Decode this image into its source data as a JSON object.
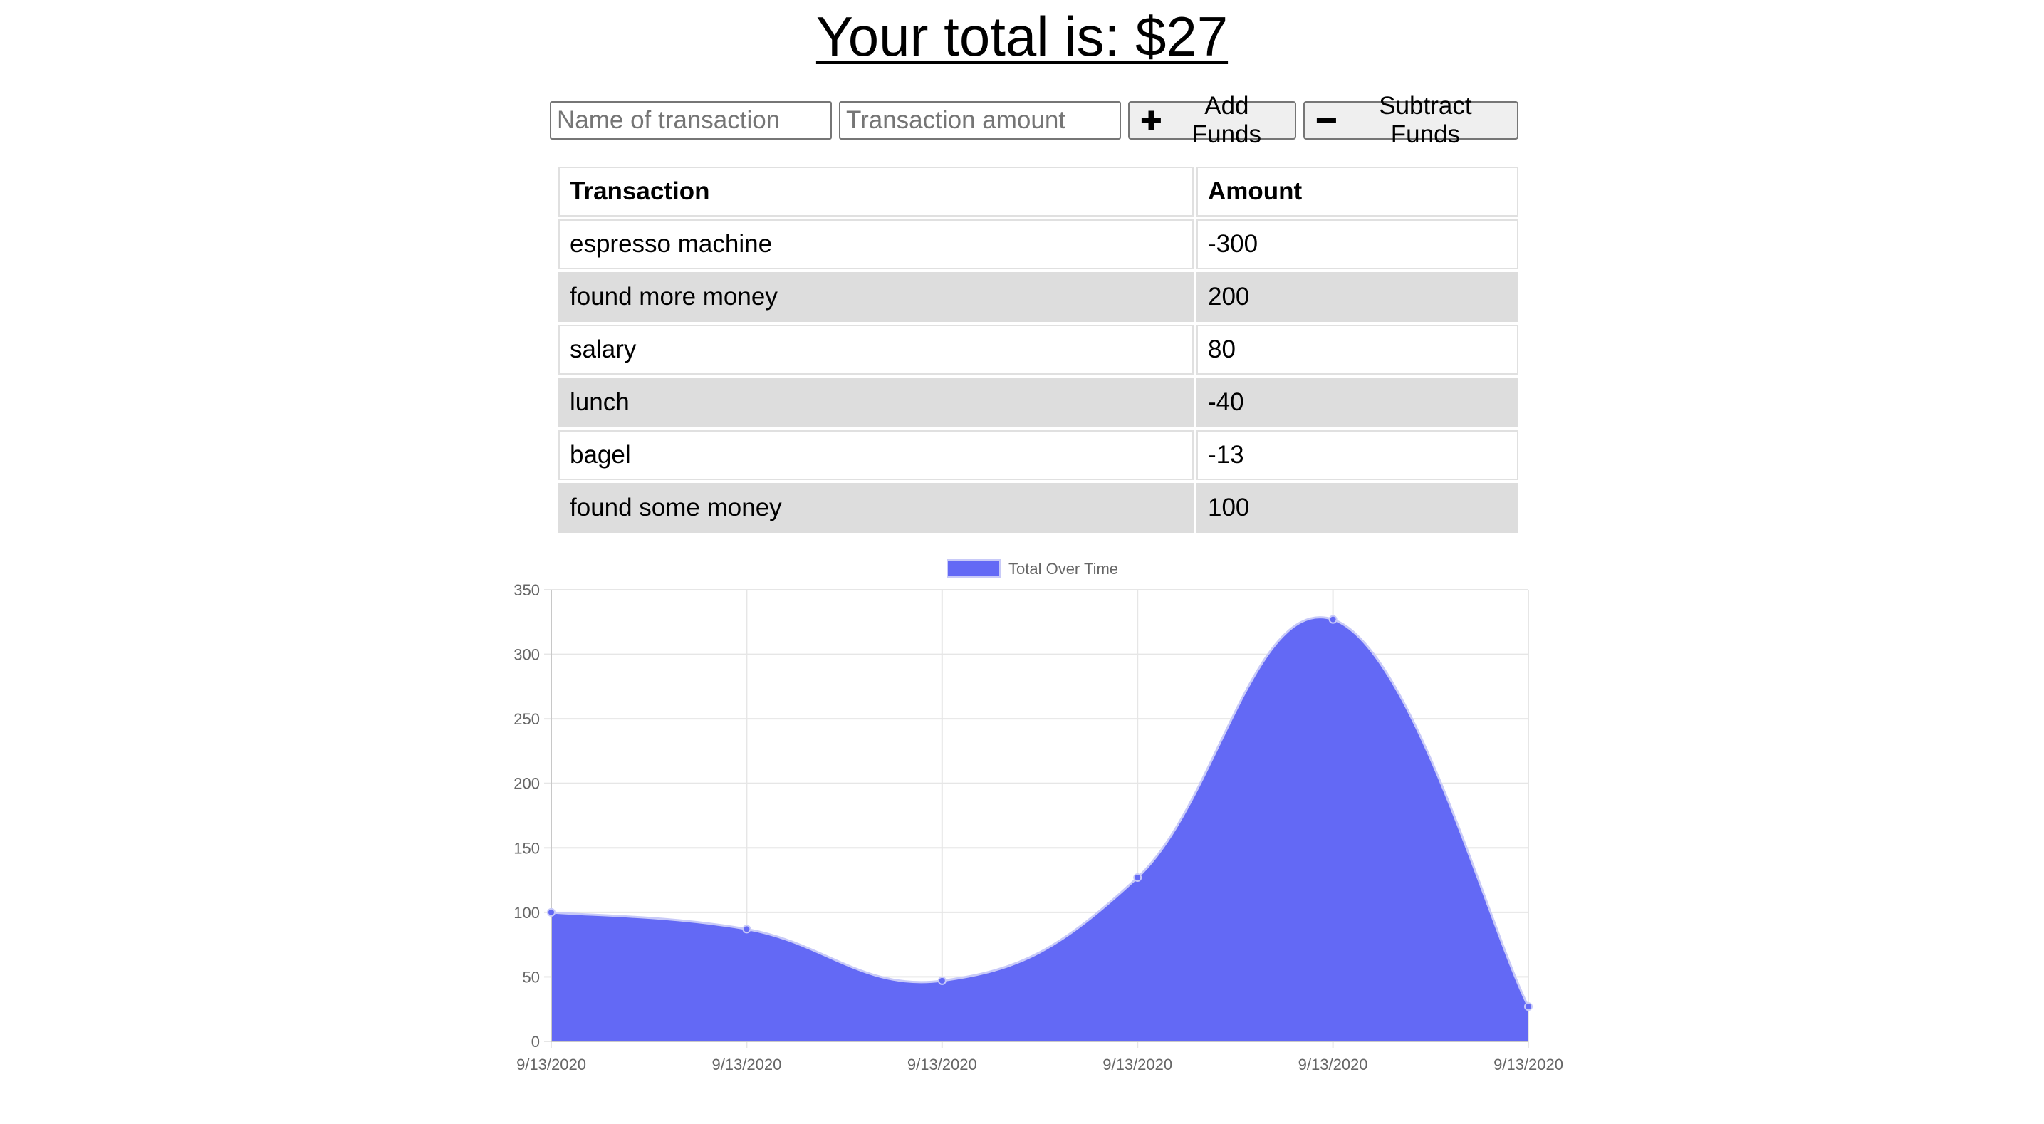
{
  "header": {
    "total_text": "Your total is: $27"
  },
  "form": {
    "name_placeholder": "Name of transaction",
    "amount_placeholder": "Transaction amount",
    "add_label": "Add Funds",
    "subtract_label": "Subtract Funds",
    "add_icon": "plus-icon",
    "subtract_icon": "minus-icon"
  },
  "table": {
    "headers": [
      "Transaction",
      "Amount"
    ],
    "rows": [
      {
        "name": "espresso machine",
        "amount": "-300"
      },
      {
        "name": "found more money",
        "amount": "200"
      },
      {
        "name": "salary",
        "amount": "80"
      },
      {
        "name": "lunch",
        "amount": "-40"
      },
      {
        "name": "bagel",
        "amount": "-13"
      },
      {
        "name": "found some money",
        "amount": "100"
      }
    ]
  },
  "chart_data": {
    "type": "area",
    "x": [
      "9/13/2020",
      "9/13/2020",
      "9/13/2020",
      "9/13/2020",
      "9/13/2020",
      "9/13/2020"
    ],
    "series": [
      {
        "name": "Total Over Time",
        "values": [
          100,
          87,
          47,
          127,
          327,
          27
        ],
        "color": "#6369f5"
      }
    ],
    "ylim": [
      0,
      350
    ],
    "yticks": [
      0,
      50,
      100,
      150,
      200,
      250,
      300,
      350
    ],
    "grid": true,
    "legend": "top-center"
  },
  "colors": {
    "area_fill": "#6369f5",
    "row_stripe": "#dddddd",
    "grid": "#e6e6e6"
  }
}
